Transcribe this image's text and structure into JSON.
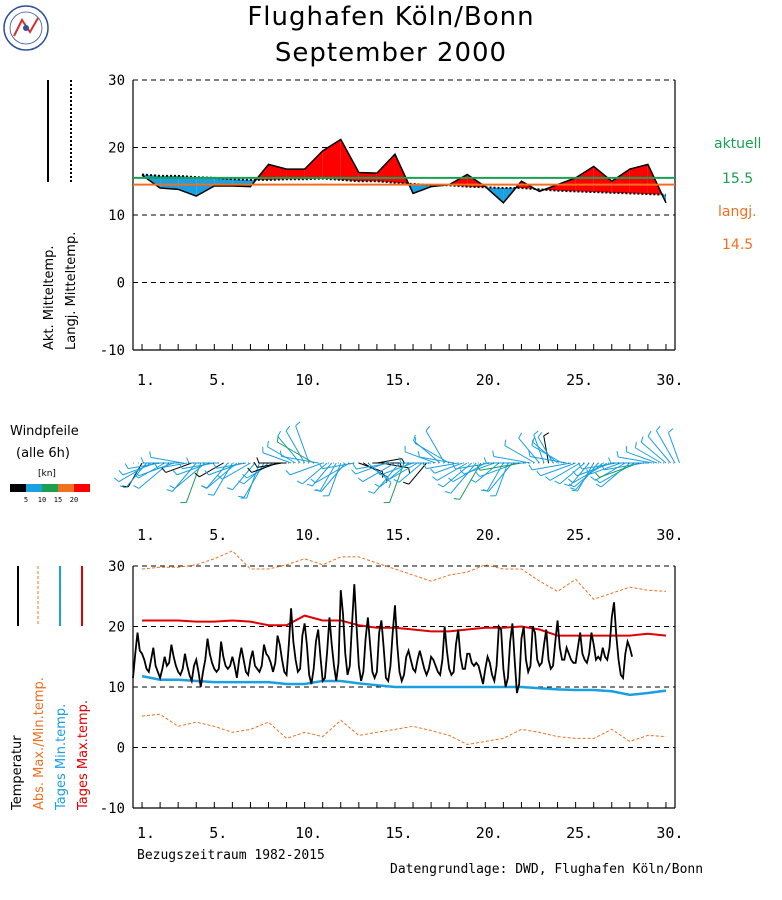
{
  "title": "Flughafen Köln/Bonn",
  "subtitle": "September 2000",
  "reference_period": "Bezugszeitraum 1982-2015",
  "source": "Datengrundlage: DWD, Flughafen Köln/Bonn",
  "side_panel": {
    "current_label": "aktuell",
    "current_value": "15.5",
    "longterm_label": "langj.",
    "longterm_value": "14.5"
  },
  "wind_panel": {
    "title_line1": "Windpfeile",
    "title_line2": "(alle 6h)",
    "unit": "[kn]",
    "scale_ticks": [
      "5",
      "10",
      "15",
      "20"
    ]
  },
  "legend_top": {
    "current": "Akt. Mitteltemp.",
    "longterm": "Langj. Mitteltemp."
  },
  "legend_bottom": {
    "temperature": "Temperatur",
    "absolute": "Abs. Max./Min.temp.",
    "daily_min": "Tages Min.temp.",
    "daily_max": "Tages Max.temp."
  },
  "colors": {
    "current_mean": "#1aa050",
    "longterm_mean": "#f07020",
    "warm_fill": "#ff0000",
    "cold_fill": "#1aa0e0",
    "temperature": "#000000",
    "absolute": "#f07020",
    "daily_min": "#1aa0e0",
    "daily_max": "#e00000",
    "wind_colors": [
      "#000000",
      "#1aa0e0",
      "#1aa050",
      "#f07020",
      "#ff0000"
    ]
  },
  "chart_data": [
    {
      "type": "area",
      "panel": "daily_mean",
      "x_tick_labels": [
        "1.",
        "5.",
        "10.",
        "15.",
        "20.",
        "25.",
        "30."
      ],
      "x_ticks": [
        1,
        5,
        10,
        15,
        20,
        25,
        30
      ],
      "xlim": [
        0.5,
        30.5
      ],
      "ylim": [
        -10,
        30
      ],
      "y_ticks": [
        -10,
        0,
        10,
        20,
        30
      ],
      "grid": "dashed",
      "current_mean": 15.5,
      "longterm_mean": 14.5,
      "series": [
        {
          "name": "Akt. Mitteltemp.",
          "values": [
            15.9,
            14.0,
            13.8,
            12.8,
            14.3,
            14.3,
            14.2,
            17.5,
            16.8,
            16.8,
            19.5,
            21.2,
            16.3,
            16.2,
            19.0,
            13.2,
            14.2,
            14.5,
            16.0,
            14.2,
            11.8,
            15.0,
            13.5,
            14.5,
            15.5,
            17.2,
            15.0,
            16.8,
            17.5,
            11.8
          ]
        },
        {
          "name": "Langj. Mitteltemp.",
          "values": [
            16.0,
            15.8,
            15.8,
            15.6,
            15.5,
            15.3,
            15.2,
            15.2,
            15.3,
            15.3,
            15.4,
            15.2,
            15.0,
            15.0,
            14.8,
            14.6,
            14.4,
            14.4,
            14.2,
            14.1,
            14.0,
            14.0,
            13.8,
            13.6,
            13.5,
            13.4,
            13.3,
            13.2,
            13.1,
            13.0
          ]
        }
      ]
    },
    {
      "type": "line",
      "panel": "temperature",
      "x_tick_labels": [
        "1.",
        "5.",
        "10.",
        "15.",
        "20.",
        "25.",
        "30."
      ],
      "x_ticks": [
        1,
        5,
        10,
        15,
        20,
        25,
        30
      ],
      "xlim": [
        0.5,
        30.5
      ],
      "ylim": [
        -10,
        30
      ],
      "y_ticks": [
        -10,
        0,
        10,
        20,
        30
      ],
      "grid": "dashed",
      "series": [
        {
          "name": "Temperatur",
          "x_start": 0.5,
          "x_step": 0.125,
          "values": [
            11.5,
            15.5,
            19.0,
            16.0,
            15.5,
            14.5,
            13.0,
            12.5,
            14.5,
            16.5,
            13.5,
            12.5,
            11.5,
            13.0,
            15.0,
            13.5,
            14.0,
            17.0,
            15.0,
            13.5,
            12.5,
            12.0,
            13.0,
            15.5,
            13.5,
            12.0,
            11.0,
            13.5,
            14.5,
            12.5,
            10.0,
            12.5,
            14.5,
            18.0,
            15.5,
            14.0,
            13.0,
            12.5,
            13.0,
            17.5,
            15.0,
            13.5,
            13.0,
            13.5,
            15.0,
            13.5,
            11.5,
            14.5,
            16.5,
            14.5,
            12.5,
            12.0,
            14.5,
            16.0,
            13.5,
            13.0,
            12.5,
            13.5,
            17.0,
            15.5,
            15.0,
            14.0,
            12.5,
            14.0,
            18.5,
            17.0,
            14.5,
            12.5,
            12.0,
            17.0,
            23.0,
            17.5,
            14.5,
            12.5,
            13.0,
            18.5,
            20.5,
            17.0,
            12.0,
            10.5,
            13.0,
            17.5,
            19.5,
            15.0,
            11.0,
            11.5,
            16.0,
            21.5,
            17.0,
            13.5,
            11.0,
            14.0,
            26.0,
            22.0,
            15.5,
            12.0,
            13.5,
            20.5,
            27.0,
            20.0,
            13.5,
            11.0,
            12.5,
            18.0,
            21.5,
            17.0,
            12.5,
            11.5,
            12.5,
            19.0,
            21.0,
            16.5,
            11.5,
            11.0,
            13.5,
            19.0,
            23.5,
            17.0,
            12.5,
            11.0,
            12.0,
            15.0,
            16.0,
            14.5,
            13.0,
            12.5,
            14.5,
            16.0,
            14.5,
            13.0,
            12.0,
            13.0,
            15.0,
            14.5,
            13.5,
            12.5,
            12.0,
            14.5,
            20.0,
            16.0,
            13.0,
            12.0,
            12.5,
            17.0,
            19.5,
            15.0,
            13.0,
            13.0,
            15.5,
            15.5,
            14.0,
            13.5,
            14.0,
            13.5,
            12.0,
            10.5,
            13.0,
            15.0,
            14.0,
            12.0,
            11.0,
            13.5,
            20.0,
            19.5,
            13.0,
            10.0,
            11.5,
            17.5,
            20.5,
            14.5,
            9.0,
            10.5,
            18.0,
            20.0,
            14.5,
            12.5,
            13.5,
            20.0,
            19.0,
            14.5,
            13.5,
            14.0,
            17.0,
            19.5,
            14.5,
            13.0,
            13.5,
            17.5,
            21.0,
            16.5,
            14.5,
            14.5,
            16.5,
            15.5,
            14.5,
            14.0,
            14.0,
            16.5,
            19.0,
            15.5,
            14.5,
            14.0,
            15.5,
            19.0,
            17.0,
            14.5,
            15.0,
            14.5,
            16.5,
            15.0,
            14.5,
            16.5,
            21.5,
            24.0,
            18.5,
            14.5,
            12.0,
            11.5,
            15.5,
            17.5,
            16.5,
            15.0
          ]
        },
        {
          "name": "Tages Max.temp.",
          "values": [
            21.0,
            21.0,
            21.0,
            20.8,
            20.8,
            21.0,
            20.8,
            20.2,
            20.2,
            21.8,
            21.0,
            21.0,
            20.2,
            19.8,
            19.8,
            19.5,
            19.2,
            19.2,
            19.5,
            19.8,
            19.8,
            20.0,
            19.5,
            18.5,
            18.5,
            18.5,
            18.5,
            18.5,
            18.8,
            18.5
          ]
        },
        {
          "name": "Tages Min.temp.",
          "values": [
            11.8,
            11.2,
            11.2,
            11.0,
            10.8,
            10.8,
            10.8,
            10.8,
            10.5,
            10.5,
            11.0,
            11.0,
            10.6,
            10.3,
            10.0,
            10.0,
            10.0,
            10.0,
            10.0,
            10.0,
            10.0,
            10.0,
            9.8,
            9.6,
            9.5,
            9.5,
            9.3,
            8.7,
            9.0,
            9.4
          ]
        },
        {
          "name": "Abs. Max.temp.",
          "values": [
            29.5,
            29.8,
            29.8,
            30.2,
            31.2,
            32.5,
            29.5,
            29.5,
            30.2,
            31.2,
            30.2,
            31.5,
            31.5,
            30.5,
            29.5,
            28.5,
            27.5,
            28.5,
            29.0,
            30.2,
            29.5,
            29.5,
            27.5,
            25.8,
            27.8,
            24.5,
            25.5,
            26.5,
            26.0,
            25.8
          ]
        },
        {
          "name": "Abs. Min.temp.",
          "values": [
            5.2,
            5.5,
            3.5,
            4.2,
            3.5,
            2.5,
            3.0,
            4.2,
            1.5,
            2.5,
            1.8,
            4.5,
            2.0,
            2.5,
            3.0,
            3.5,
            2.8,
            2.0,
            0.5,
            1.0,
            1.5,
            3.0,
            2.5,
            1.8,
            1.5,
            1.5,
            3.0,
            1.0,
            2.0,
            1.8
          ]
        }
      ]
    }
  ],
  "wind_data": {
    "x_tick_labels": [
      "1.",
      "5.",
      "10.",
      "15.",
      "20.",
      "25.",
      "30."
    ],
    "observations_per_day": 4,
    "direction_deg": [
      210,
      220,
      240,
      250,
      260,
      240,
      230,
      250,
      270,
      280,
      260,
      250,
      220,
      200,
      230,
      250,
      260,
      270,
      240,
      220,
      210,
      230,
      250,
      260,
      240,
      220,
      200,
      210,
      230,
      240,
      250,
      260,
      270,
      290,
      300,
      320,
      330,
      340,
      300,
      280,
      250,
      230,
      220,
      210,
      200,
      220,
      240,
      260,
      110,
      120,
      130,
      90,
      80,
      100,
      250,
      260,
      240,
      220,
      200,
      230,
      250,
      240,
      230,
      220,
      270,
      290,
      310,
      330,
      300,
      280,
      260,
      250,
      240,
      230,
      220,
      210,
      240,
      260,
      250,
      230,
      210,
      200,
      220,
      250,
      260,
      270,
      280,
      300,
      320,
      340,
      350,
      330,
      310,
      300,
      280,
      260,
      250,
      240,
      230,
      220,
      210,
      220,
      230,
      240,
      250,
      260,
      250,
      240,
      230,
      240,
      250,
      260,
      270,
      280,
      290,
      300,
      310,
      320,
      330,
      340
    ],
    "speed_kn": [
      4,
      6,
      8,
      7,
      6,
      5,
      9,
      8,
      7,
      6,
      5,
      4,
      8,
      10,
      9,
      7,
      6,
      5,
      4,
      6,
      8,
      9,
      7,
      5,
      6,
      7,
      8,
      9,
      6,
      5,
      4,
      3,
      4,
      5,
      6,
      7,
      8,
      9,
      10,
      8,
      7,
      6,
      5,
      6,
      7,
      8,
      9,
      6,
      3,
      4,
      5,
      4,
      3,
      4,
      6,
      7,
      8,
      9,
      10,
      8,
      7,
      6,
      5,
      4,
      5,
      6,
      7,
      8,
      9,
      7,
      6,
      5,
      7,
      8,
      9,
      10,
      8,
      7,
      6,
      5,
      6,
      7,
      8,
      9,
      10,
      9,
      8,
      7,
      6,
      5,
      4,
      5,
      6,
      7,
      8,
      9,
      8,
      7,
      6,
      5,
      6,
      7,
      8,
      9,
      8,
      7,
      6,
      7,
      8,
      9,
      10,
      9,
      8,
      7,
      6,
      5,
      6,
      7,
      8,
      6
    ]
  }
}
